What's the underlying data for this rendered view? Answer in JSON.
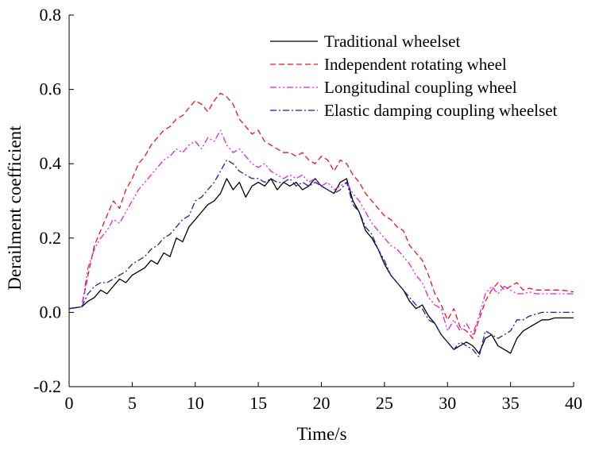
{
  "chart_data": {
    "type": "line",
    "title": "",
    "xlabel": "Time/s",
    "ylabel": "Derailment coefficient",
    "xlim": [
      0,
      40
    ],
    "ylim": [
      -0.2,
      0.8
    ],
    "x_ticks": [
      0,
      5,
      10,
      15,
      20,
      25,
      30,
      35,
      40
    ],
    "x_tick_labels": [
      "0",
      "5",
      "10",
      "15",
      "20",
      "25",
      "30",
      "35",
      "40"
    ],
    "y_ticks": [
      -0.2,
      0.0,
      0.2,
      0.4,
      0.6,
      0.8
    ],
    "y_tick_labels": [
      "-0.2",
      "0.0",
      "0.2",
      "0.4",
      "0.6",
      "0.8"
    ],
    "grid": false,
    "legend_position": "top-right",
    "x": [
      0,
      1,
      1.5,
      2,
      2.5,
      3,
      3.5,
      4,
      4.5,
      5,
      5.5,
      6,
      6.5,
      7,
      7.5,
      8,
      8.5,
      9,
      9.5,
      10,
      10.5,
      11,
      11.5,
      12,
      12.5,
      13,
      13.5,
      14,
      14.5,
      15,
      15.5,
      16,
      16.5,
      17,
      17.5,
      18,
      18.5,
      19,
      19.5,
      20,
      20.5,
      21,
      21.5,
      22,
      22.5,
      23,
      23.5,
      24,
      24.5,
      25,
      25.5,
      26,
      26.5,
      27,
      27.5,
      28,
      28.5,
      29,
      29.5,
      30,
      30.5,
      31,
      31.5,
      32,
      32.5,
      33,
      33.5,
      34,
      34.5,
      35,
      35.5,
      36,
      36.5,
      37,
      37.5,
      38,
      38.5,
      39,
      39.5,
      40
    ],
    "series": [
      {
        "name": "Traditional wheelset",
        "color": "#000000",
        "dash": "solid",
        "values": [
          0.01,
          0.015,
          0.03,
          0.04,
          0.06,
          0.05,
          0.07,
          0.09,
          0.08,
          0.1,
          0.11,
          0.12,
          0.14,
          0.13,
          0.16,
          0.15,
          0.2,
          0.19,
          0.23,
          0.25,
          0.27,
          0.29,
          0.3,
          0.32,
          0.36,
          0.33,
          0.35,
          0.31,
          0.34,
          0.35,
          0.34,
          0.36,
          0.33,
          0.35,
          0.34,
          0.35,
          0.33,
          0.34,
          0.36,
          0.34,
          0.33,
          0.32,
          0.35,
          0.36,
          0.3,
          0.27,
          0.22,
          0.2,
          0.17,
          0.13,
          0.1,
          0.08,
          0.06,
          0.03,
          0.01,
          0.02,
          -0.01,
          -0.03,
          -0.06,
          -0.08,
          -0.1,
          -0.09,
          -0.08,
          -0.09,
          -0.11,
          -0.07,
          -0.06,
          -0.09,
          -0.1,
          -0.11,
          -0.07,
          -0.05,
          -0.04,
          -0.03,
          -0.02,
          -0.02,
          -0.015,
          -0.015,
          -0.015,
          -0.015
        ]
      },
      {
        "name": "Independent rotating wheel",
        "color": "#e8141c",
        "dash": "dashed",
        "values": [
          0.01,
          0.015,
          0.1,
          0.18,
          0.22,
          0.26,
          0.3,
          0.28,
          0.33,
          0.36,
          0.4,
          0.42,
          0.45,
          0.47,
          0.49,
          0.5,
          0.52,
          0.53,
          0.55,
          0.57,
          0.56,
          0.54,
          0.57,
          0.59,
          0.58,
          0.56,
          0.52,
          0.5,
          0.48,
          0.49,
          0.46,
          0.45,
          0.44,
          0.43,
          0.43,
          0.42,
          0.43,
          0.41,
          0.4,
          0.42,
          0.41,
          0.38,
          0.41,
          0.4,
          0.37,
          0.35,
          0.32,
          0.3,
          0.28,
          0.26,
          0.25,
          0.23,
          0.22,
          0.18,
          0.16,
          0.14,
          0.1,
          0.05,
          0.02,
          -0.02,
          0.01,
          -0.04,
          -0.05,
          -0.07,
          -0.02,
          0.03,
          0.06,
          0.08,
          0.06,
          0.07,
          0.08,
          0.06,
          0.065,
          0.06,
          0.06,
          0.06,
          0.06,
          0.06,
          0.058,
          0.055
        ]
      },
      {
        "name": "Longitudinal coupling wheel",
        "color": "#e020e0",
        "dash": "dash-dot-dot",
        "values": [
          0.01,
          0.015,
          0.12,
          0.17,
          0.2,
          0.22,
          0.25,
          0.24,
          0.27,
          0.3,
          0.33,
          0.35,
          0.37,
          0.39,
          0.41,
          0.42,
          0.44,
          0.43,
          0.45,
          0.46,
          0.44,
          0.47,
          0.46,
          0.49,
          0.45,
          0.43,
          0.44,
          0.42,
          0.4,
          0.39,
          0.4,
          0.38,
          0.37,
          0.36,
          0.37,
          0.36,
          0.37,
          0.35,
          0.36,
          0.34,
          0.35,
          0.33,
          0.34,
          0.35,
          0.32,
          0.3,
          0.27,
          0.24,
          0.22,
          0.2,
          0.18,
          0.17,
          0.15,
          0.13,
          0.1,
          0.08,
          0.04,
          0.02,
          0.01,
          -0.05,
          -0.02,
          -0.05,
          -0.03,
          -0.06,
          -0.01,
          0.05,
          0.07,
          0.05,
          0.07,
          0.06,
          0.05,
          0.05,
          0.055,
          0.05,
          0.05,
          0.05,
          0.05,
          0.05,
          0.05,
          0.05
        ]
      },
      {
        "name": "Elastic damping coupling wheelset",
        "color": "#1f1fae",
        "dash": "dash-dot",
        "values": [
          0.01,
          0.015,
          0.05,
          0.07,
          0.08,
          0.08,
          0.09,
          0.1,
          0.11,
          0.13,
          0.14,
          0.15,
          0.17,
          0.18,
          0.2,
          0.21,
          0.23,
          0.25,
          0.26,
          0.3,
          0.31,
          0.33,
          0.35,
          0.38,
          0.41,
          0.4,
          0.38,
          0.37,
          0.36,
          0.36,
          0.35,
          0.36,
          0.35,
          0.35,
          0.36,
          0.34,
          0.35,
          0.34,
          0.35,
          0.34,
          0.33,
          0.32,
          0.33,
          0.35,
          0.29,
          0.27,
          0.23,
          0.21,
          0.17,
          0.14,
          0.1,
          0.08,
          0.06,
          0.04,
          0.02,
          0.01,
          -0.02,
          -0.03,
          -0.06,
          -0.08,
          -0.1,
          -0.08,
          -0.09,
          -0.1,
          -0.12,
          -0.05,
          -0.06,
          -0.07,
          -0.06,
          -0.05,
          -0.02,
          -0.02,
          -0.01,
          -0.005,
          0,
          0,
          0,
          0,
          0,
          0
        ]
      }
    ]
  }
}
